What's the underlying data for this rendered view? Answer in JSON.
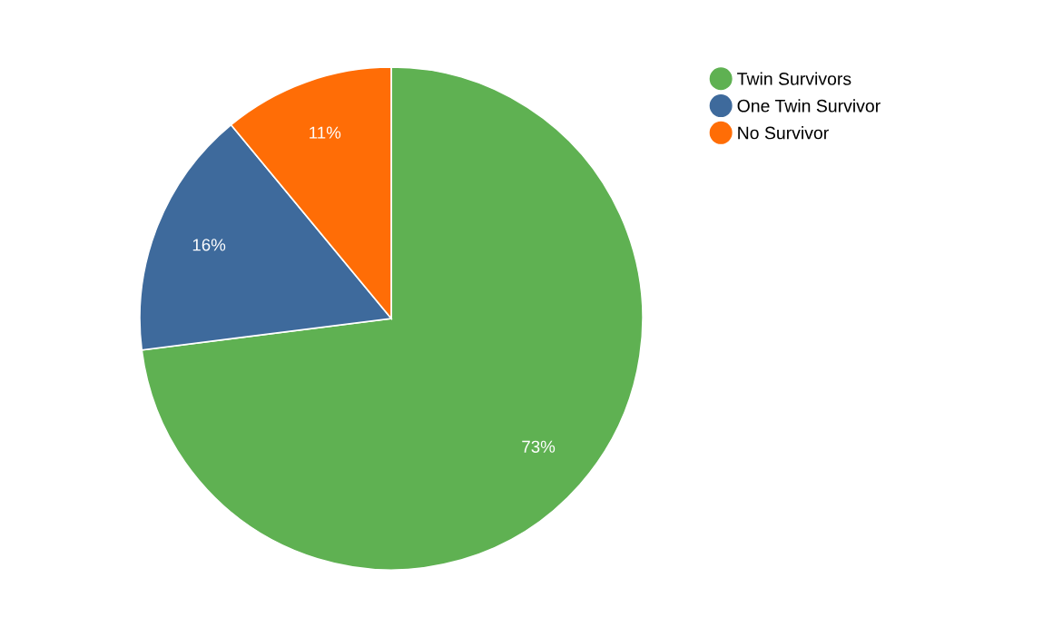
{
  "chart_data": {
    "type": "pie",
    "categories": [
      "Twin Survivors",
      "One Twin Survivor",
      "No Survivor"
    ],
    "values": [
      73,
      16,
      11
    ],
    "colors": [
      "#5fb152",
      "#3e6a9c",
      "#ff6d06"
    ],
    "value_labels": [
      "73%",
      "16%",
      "11%"
    ],
    "legend": "top right"
  }
}
